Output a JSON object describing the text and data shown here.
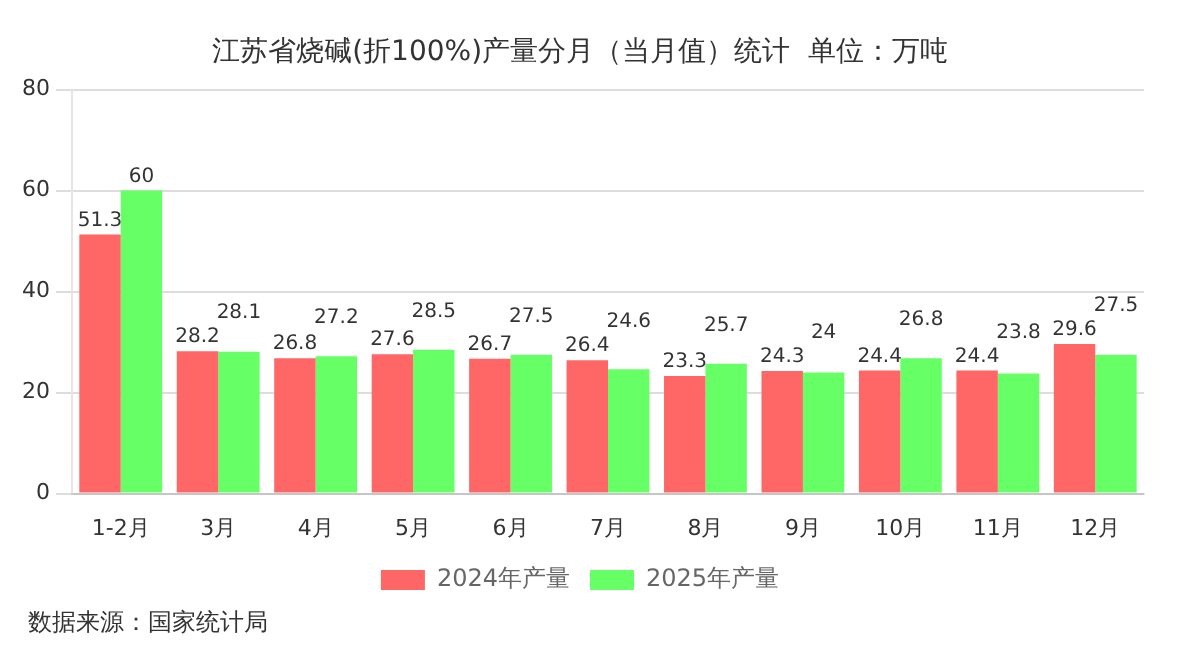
{
  "chart_data": {
    "type": "bar",
    "title": "江苏省烧碱(折100%)产量分月（当月值）统计  单位：万吨",
    "categories": [
      "1-2月",
      "3月",
      "4月",
      "5月",
      "6月",
      "7月",
      "8月",
      "9月",
      "10月",
      "11月",
      "12月"
    ],
    "series": [
      {
        "name": "2024年产量",
        "color": "#ff6666",
        "values": [
          51.3,
          28.2,
          26.8,
          27.6,
          26.7,
          26.4,
          23.3,
          24.3,
          24.4,
          24.4,
          29.6
        ]
      },
      {
        "name": "2025年产量",
        "color": "#66ff66",
        "values": [
          60,
          28.1,
          27.2,
          28.5,
          27.5,
          24.6,
          25.7,
          24,
          26.8,
          23.8,
          27.5
        ]
      }
    ],
    "ylim": [
      0,
      80
    ],
    "yticks": [
      0,
      20,
      40,
      60,
      80
    ],
    "grid": "y",
    "legend": "bottom",
    "data_labels": true,
    "annotations": [
      "数据来源：国家统计局"
    ]
  }
}
